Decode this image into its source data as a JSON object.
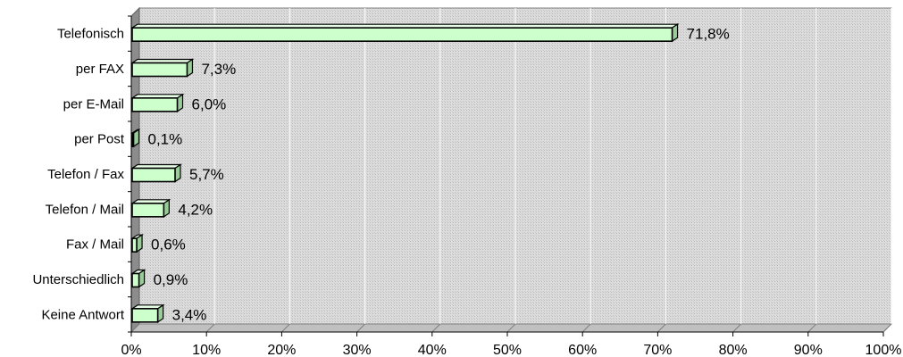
{
  "chart_data": {
    "type": "bar",
    "orientation": "horizontal",
    "title": "",
    "xlabel": "",
    "ylabel": "",
    "categories": [
      "Telefonisch",
      "per FAX",
      "per E-Mail",
      "per Post",
      "Telefon / Fax",
      "Telefon / Mail",
      "Fax / Mail",
      "Unterschiedlich",
      "Keine Antwort"
    ],
    "values": [
      71.8,
      7.3,
      6.0,
      0.1,
      5.7,
      4.2,
      0.6,
      0.9,
      3.4
    ],
    "value_labels": [
      "71,8%",
      "7,3%",
      "6,0%",
      "0,1%",
      "5,7%",
      "4,2%",
      "0,6%",
      "0,9%",
      "3,4%"
    ],
    "xlim": [
      0,
      100
    ],
    "xticks": [
      0,
      10,
      20,
      30,
      40,
      50,
      60,
      70,
      80,
      90,
      100
    ],
    "xtick_labels": [
      "0%",
      "10%",
      "20%",
      "30%",
      "40%",
      "50%",
      "60%",
      "70%",
      "80%",
      "90%",
      "100%"
    ],
    "grid": true,
    "style": "3d",
    "colors": {
      "bar_fill": "#ccffcc",
      "bar_side": "#99cc99",
      "bar_top": "#e6ffe6",
      "bar_edge": "#000000",
      "wall": "#d4d4d4",
      "floor": "#c0c0c0",
      "gridline": "#ffffff"
    }
  }
}
